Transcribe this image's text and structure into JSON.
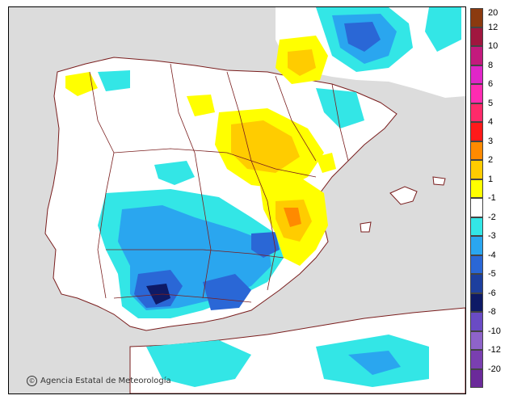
{
  "credit": {
    "text": "Agencia Estatal de Meteorología",
    "icon": "copyright-icon"
  },
  "legend": {
    "bins": [
      {
        "color": "#8b3a0f"
      },
      {
        "color": "#a0173f"
      },
      {
        "color": "#c31a7d"
      },
      {
        "color": "#e026c8"
      },
      {
        "color": "#ff2bb1"
      },
      {
        "color": "#ff2a6a"
      },
      {
        "color": "#ff1a1a"
      },
      {
        "color": "#ff8a00"
      },
      {
        "color": "#ffcc00"
      },
      {
        "color": "#ffff00"
      },
      {
        "color": "#ffffff"
      },
      {
        "color": "#33e6e6"
      },
      {
        "color": "#2aa6ef"
      },
      {
        "color": "#2a67d6"
      },
      {
        "color": "#1d3f9e"
      },
      {
        "color": "#0e1a66"
      },
      {
        "color": "#6a4bc4"
      },
      {
        "color": "#8e63c9"
      },
      {
        "color": "#7a3fb0"
      },
      {
        "color": "#6b2a9a"
      }
    ],
    "labels": [
      "20",
      "12",
      "10",
      "8",
      "6",
      "5",
      "4",
      "3",
      "2",
      "1",
      "-1",
      "-2",
      "-3",
      "-4",
      "-5",
      "-6",
      "-8",
      "-10",
      "-12",
      "-20"
    ]
  },
  "colors": {
    "sea": "#dcdcdc",
    "land": "#ffffff",
    "border": "#7a1e1e",
    "cyan": "#33e6e6",
    "light_blue": "#2aa6ef",
    "blue": "#2a67d6",
    "dark_blue": "#0e1a66",
    "yellow": "#ffff00",
    "gold": "#ffcc00",
    "orange": "#ff8a00"
  }
}
